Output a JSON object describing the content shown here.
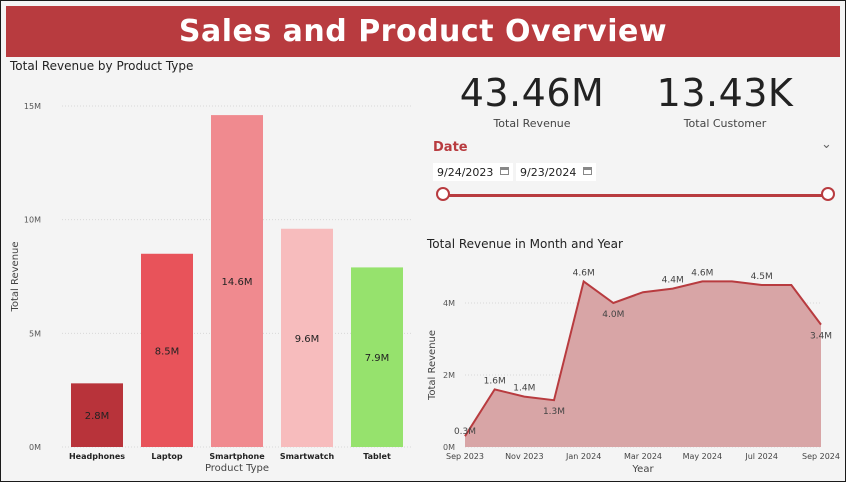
{
  "header": {
    "title": "Sales and Product Overview"
  },
  "kpis": [
    {
      "value": "43.46M",
      "label": "Total Revenue"
    },
    {
      "value": "13.43K",
      "label": "Total Customer"
    }
  ],
  "date_slicer": {
    "title": "Date",
    "start": "9/24/2023",
    "end": "9/23/2024"
  },
  "colors": {
    "accent": "#b83b3f",
    "headphones": "#b8333a",
    "laptop": "#e8535a",
    "smartphone": "#f08a8f",
    "smartwatch": "#f7bcbd",
    "tablet": "#96e26d",
    "area_fill": "#d8a5a6",
    "area_line": "#b83b3f"
  },
  "chart_data": [
    {
      "type": "bar",
      "title": "Total Revenue by Product Type",
      "xlabel": "Product Type",
      "ylabel": "Total Revenue",
      "categories": [
        "Headphones",
        "Laptop",
        "Smartphone",
        "Smartwatch",
        "Tablet"
      ],
      "values": [
        2.8,
        8.5,
        14.6,
        9.6,
        7.9
      ],
      "data_labels": [
        "2.8M",
        "8.5M",
        "14.6M",
        "9.6M",
        "7.9M"
      ],
      "ylim": [
        0,
        15
      ],
      "yticks": [
        0,
        5,
        10,
        15
      ],
      "ytick_labels": [
        "0M",
        "5M",
        "10M",
        "15M"
      ],
      "grid": true
    },
    {
      "type": "area",
      "title": "Total Revenue in Month and Year",
      "xlabel": "Year",
      "ylabel": "Total Revenue",
      "x": [
        "2023-09",
        "2023-10",
        "2023-11",
        "2023-12",
        "2024-01",
        "2024-02",
        "2024-03",
        "2024-04",
        "2024-05",
        "2024-06",
        "2024-07",
        "2024-08",
        "2024-09"
      ],
      "values": [
        0.3,
        1.6,
        1.4,
        1.3,
        4.6,
        4.0,
        4.3,
        4.4,
        4.6,
        4.6,
        4.5,
        4.5,
        3.4
      ],
      "data_labels": [
        {
          "index": 0,
          "text": "0.3M"
        },
        {
          "index": 1,
          "text": "1.6M"
        },
        {
          "index": 2,
          "text": "1.4M"
        },
        {
          "index": 3,
          "text": "1.3M"
        },
        {
          "index": 4,
          "text": "4.6M"
        },
        {
          "index": 5,
          "text": "4.0M"
        },
        {
          "index": 7,
          "text": "4.4M"
        },
        {
          "index": 8,
          "text": "4.6M"
        },
        {
          "index": 10,
          "text": "4.5M"
        },
        {
          "index": 12,
          "text": "3.4M"
        }
      ],
      "xtick_labels": [
        {
          "index": 0,
          "text": "Sep 2023"
        },
        {
          "index": 2,
          "text": "Nov 2023"
        },
        {
          "index": 4,
          "text": "Jan 2024"
        },
        {
          "index": 6,
          "text": "Mar 2024"
        },
        {
          "index": 8,
          "text": "May 2024"
        },
        {
          "index": 10,
          "text": "Jul 2024"
        },
        {
          "index": 12,
          "text": "Sep 2024"
        }
      ],
      "ylim": [
        0,
        5
      ],
      "yticks": [
        0,
        2,
        4
      ],
      "ytick_labels": [
        "0M",
        "2M",
        "4M"
      ],
      "grid": true
    }
  ]
}
